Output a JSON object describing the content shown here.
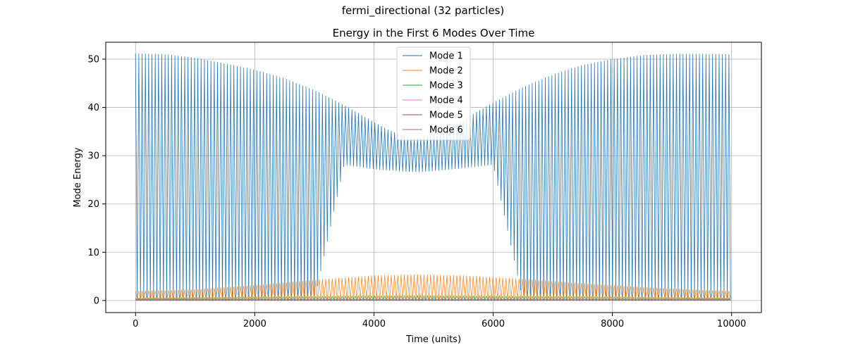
{
  "figure": {
    "suptitle": "fermi_directional (32 particles)"
  },
  "chart_data": {
    "type": "line",
    "title": "Energy in the First 6 Modes Over Time",
    "xlabel": "Time (units)",
    "ylabel": "Mode Energy",
    "xlim": [
      -500,
      10500
    ],
    "ylim": [
      -2.5,
      53.5
    ],
    "xticks": [
      0,
      2000,
      4000,
      6000,
      8000,
      10000
    ],
    "yticks": [
      0,
      10,
      20,
      30,
      40,
      50
    ],
    "grid": true,
    "legend_position": "upper-center",
    "oscillation_period": 55,
    "series": [
      {
        "name": "Mode 1",
        "color": "#1f77b4",
        "envelope_t": [
          0,
          500,
          1000,
          1500,
          2000,
          2500,
          3000,
          3500,
          4000,
          4250,
          4500,
          4750,
          5000,
          5500,
          6000,
          6500,
          7000,
          7500,
          8000,
          8500,
          9000,
          9500,
          10000
        ],
        "envelope_max": [
          51.2,
          51.0,
          50.3,
          49.1,
          47.8,
          46.0,
          43.6,
          40.5,
          37.0,
          35.3,
          34.1,
          33.6,
          34.3,
          37.5,
          41.0,
          44.2,
          46.8,
          48.8,
          50.0,
          50.8,
          51.1,
          51.1,
          51.0
        ],
        "envelope_min": [
          0,
          0,
          0,
          0,
          0,
          0,
          0,
          28.1,
          27.2,
          26.9,
          26.7,
          26.6,
          26.8,
          27.4,
          28.1,
          0,
          0,
          0,
          0,
          0,
          0,
          0,
          0
        ]
      },
      {
        "name": "Mode 2",
        "color": "#ff7f0e",
        "envelope_t": [
          0,
          1000,
          2000,
          3000,
          4000,
          4750,
          5500,
          6500,
          7500,
          8500,
          9500,
          10000
        ],
        "envelope_max": [
          2.0,
          2.3,
          3.2,
          4.3,
          5.2,
          5.4,
          5.2,
          4.5,
          3.6,
          2.8,
          2.2,
          2.0
        ],
        "envelope_min": [
          0,
          0,
          0,
          0,
          0,
          0,
          0,
          0,
          0,
          0,
          0,
          0
        ]
      },
      {
        "name": "Mode 3",
        "color": "#2ca02c",
        "envelope_t": [
          0,
          2500,
          4750,
          7500,
          10000
        ],
        "envelope_max": [
          0.5,
          0.8,
          1.0,
          0.8,
          0.5
        ],
        "envelope_min": [
          0,
          0,
          0,
          0,
          0
        ]
      },
      {
        "name": "Mode 4",
        "color": "#e377c2",
        "envelope_t": [
          0,
          10000
        ],
        "envelope_max": [
          0.3,
          0.3
        ],
        "envelope_min": [
          0,
          0
        ]
      },
      {
        "name": "Mode 5",
        "color": "#8c564b",
        "envelope_t": [
          0,
          10000
        ],
        "envelope_max": [
          0.2,
          0.2
        ],
        "envelope_min": [
          0,
          0
        ]
      },
      {
        "name": "Mode 6",
        "color": "#9467bd",
        "envelope_t": [
          0,
          10000
        ],
        "envelope_max": [
          0.1,
          0.1
        ],
        "envelope_min": [
          0,
          0
        ]
      }
    ]
  }
}
